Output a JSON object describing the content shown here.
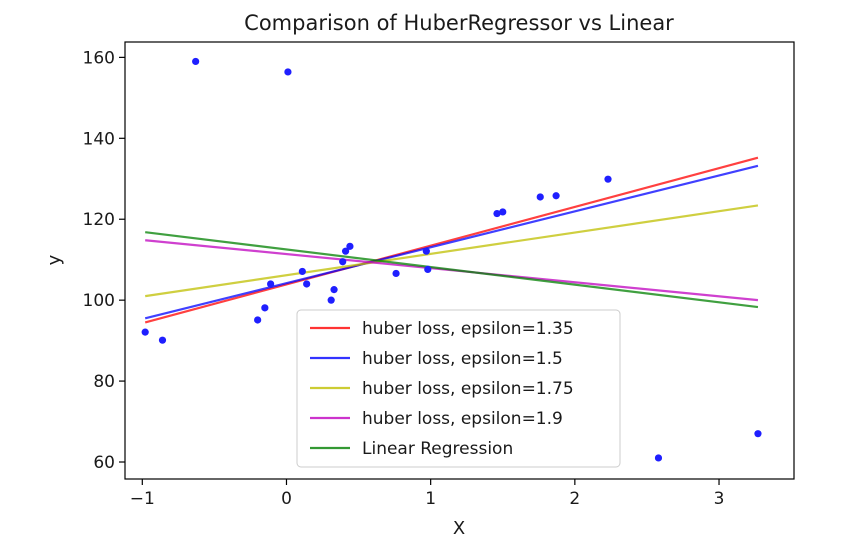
{
  "chart_data": {
    "type": "scatter",
    "title": "Comparison of HuberRegressor vs Linear",
    "xlabel": "X",
    "ylabel": "y",
    "xlim": [
      -1.12,
      3.52
    ],
    "ylim": [
      55.8,
      163.8
    ],
    "xticks": [
      -1,
      0,
      1,
      2,
      3
    ],
    "yticks": [
      60,
      80,
      100,
      120,
      140,
      160
    ],
    "grid": false,
    "legend_position": "lower-center",
    "points_color": "#1f1fff",
    "points": [
      {
        "x": -0.98,
        "y": 92.1
      },
      {
        "x": -0.86,
        "y": 90.1
      },
      {
        "x": -0.63,
        "y": 159.0
      },
      {
        "x": -0.2,
        "y": 95.1
      },
      {
        "x": -0.15,
        "y": 98.1
      },
      {
        "x": -0.11,
        "y": 104.0
      },
      {
        "x": 0.01,
        "y": 156.4
      },
      {
        "x": 0.11,
        "y": 107.1
      },
      {
        "x": 0.14,
        "y": 104.0
      },
      {
        "x": 0.31,
        "y": 100.0
      },
      {
        "x": 0.33,
        "y": 102.6
      },
      {
        "x": 0.39,
        "y": 109.5
      },
      {
        "x": 0.41,
        "y": 112.1
      },
      {
        "x": 0.44,
        "y": 113.3
      },
      {
        "x": 0.76,
        "y": 106.6
      },
      {
        "x": 0.97,
        "y": 112.1
      },
      {
        "x": 0.98,
        "y": 107.6
      },
      {
        "x": 1.46,
        "y": 121.4
      },
      {
        "x": 1.5,
        "y": 121.8
      },
      {
        "x": 1.76,
        "y": 125.5
      },
      {
        "x": 1.87,
        "y": 125.8
      },
      {
        "x": 2.23,
        "y": 129.9
      },
      {
        "x": 2.58,
        "y": 61.0
      },
      {
        "x": 3.27,
        "y": 67.0
      }
    ],
    "series": [
      {
        "name": "huber loss, epsilon=1.35",
        "color": "#ff0000",
        "x": [
          -0.98,
          3.27
        ],
        "values": [
          94.5,
          135.2
        ]
      },
      {
        "name": "huber loss, epsilon=1.5",
        "color": "#0000ff",
        "x": [
          -0.98,
          3.27
        ],
        "values": [
          95.5,
          133.2
        ]
      },
      {
        "name": "huber loss, epsilon=1.75",
        "color": "#bfbf00",
        "x": [
          -0.98,
          3.27
        ],
        "values": [
          101.0,
          123.4
        ]
      },
      {
        "name": "huber loss, epsilon=1.9",
        "color": "#bf00bf",
        "x": [
          -0.98,
          3.27
        ],
        "values": [
          114.8,
          100.0
        ]
      },
      {
        "name": "Linear Regression",
        "color": "#008000",
        "x": [
          -0.98,
          3.27
        ],
        "values": [
          116.8,
          98.3
        ]
      }
    ]
  }
}
